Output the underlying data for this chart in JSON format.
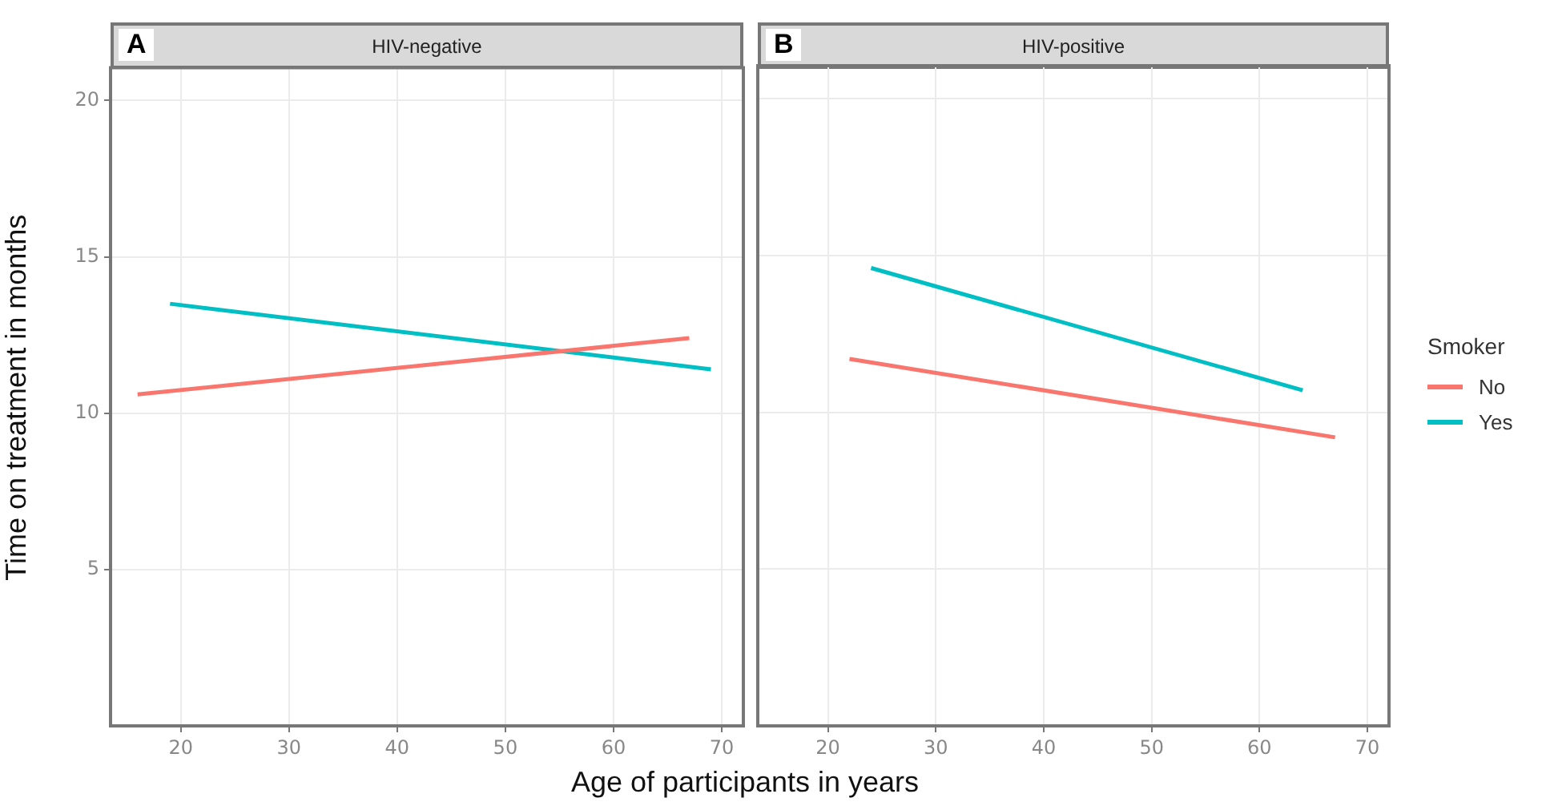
{
  "chart_data": [
    {
      "type": "line",
      "title": "HIV-negative",
      "ylabel": "Time on treatment in months",
      "xlabel": "Age of participants in years",
      "annotations": [
        "A"
      ],
      "xlim": [
        13.5,
        72
      ],
      "xticks": [
        20,
        30,
        40,
        50,
        60,
        70
      ],
      "ylim": [
        0,
        21
      ],
      "yticks": [
        5,
        10,
        15,
        20
      ],
      "grid": true,
      "series": [
        {
          "color": "#f8766d",
          "x": [
            16,
            67
          ],
          "values": [
            10.6,
            12.4
          ]
        },
        {
          "color": "#00bfc4",
          "x": [
            19,
            69
          ],
          "values": [
            13.5,
            11.4
          ]
        }
      ]
    },
    {
      "type": "line",
      "title": "HIV-positive",
      "annotations": [
        "B"
      ],
      "legend": "right",
      "legend_title": "Smoker",
      "xlim": [
        13.5,
        72
      ],
      "xticks": [
        20,
        30,
        40,
        50,
        60,
        70
      ],
      "ylim": [
        0,
        21
      ],
      "yticks": [
        5,
        10,
        15,
        20
      ],
      "grid": true,
      "tick_labels": "x",
      "series": [
        {
          "name": "No",
          "color": "#f8766d",
          "x": [
            22,
            67
          ],
          "values": [
            11.7,
            9.2
          ]
        },
        {
          "name": "Yes",
          "color": "#00bfc4",
          "x": [
            24,
            64
          ],
          "values": [
            14.6,
            10.7
          ]
        }
      ]
    }
  ]
}
